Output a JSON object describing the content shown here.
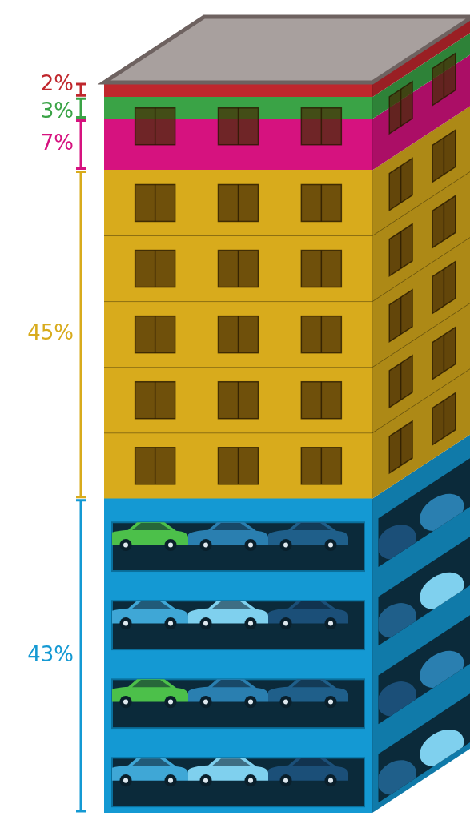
{
  "chart_data": {
    "type": "bar",
    "stacked": true,
    "values": [
      43,
      45,
      7,
      3,
      2
    ],
    "value_labels": [
      "43%",
      "45%",
      "7%",
      "3%",
      "2%"
    ],
    "colors": [
      "#1499d3",
      "#d8ab1c",
      "#d6127f",
      "#3aa346",
      "#c0272d"
    ],
    "ylim": [
      0,
      100
    ],
    "tick_labels": false,
    "data_labels": true,
    "grid": false
  }
}
